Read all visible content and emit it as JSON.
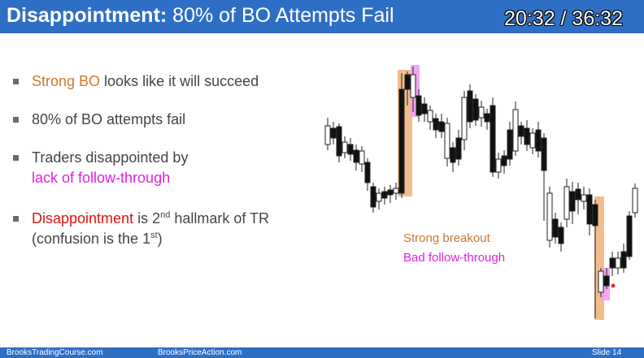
{
  "header": {
    "title_bold": "Disappointment:",
    "title_rest": " 80% of BO Attempts Fail",
    "timer": "20:32 / 36:32"
  },
  "bullets": [
    {
      "parts": [
        {
          "text": "Strong BO",
          "color": "#d2762c"
        },
        {
          "text": " looks like it will succeed",
          "color": "#444444"
        }
      ]
    },
    {
      "parts": [
        {
          "text": "80% of BO attempts fail",
          "color": "#444444"
        }
      ]
    },
    {
      "parts": [
        {
          "text": "Traders disappointed by",
          "color": "#444444"
        }
      ],
      "line2": [
        {
          "text": "lack of follow-through",
          "color": "#e020e0"
        }
      ]
    },
    {
      "parts": [
        {
          "text": "Disappointment",
          "color": "#e01010"
        },
        {
          "text": " is 2",
          "color": "#444444"
        },
        {
          "sup": "nd"
        },
        {
          "text": " hallmark of TR",
          "color": "#444444"
        }
      ],
      "line2": [
        {
          "text": "(confusion is the 1",
          "color": "#444444"
        },
        {
          "sup": "st"
        },
        {
          "text": ")",
          "color": "#444444"
        }
      ]
    }
  ],
  "chart_labels": {
    "strong_breakout": "Strong breakout",
    "bad_follow_through": "Bad follow-through"
  },
  "footer": {
    "left": "BrooksTradingCourse.com",
    "center": "BrooksPriceAction.com",
    "right": "Slide  14"
  },
  "colors": {
    "accent": "#2e6fc6",
    "orange_highlight": "#f0b27a",
    "pink_highlight": "#f29cf2"
  }
}
